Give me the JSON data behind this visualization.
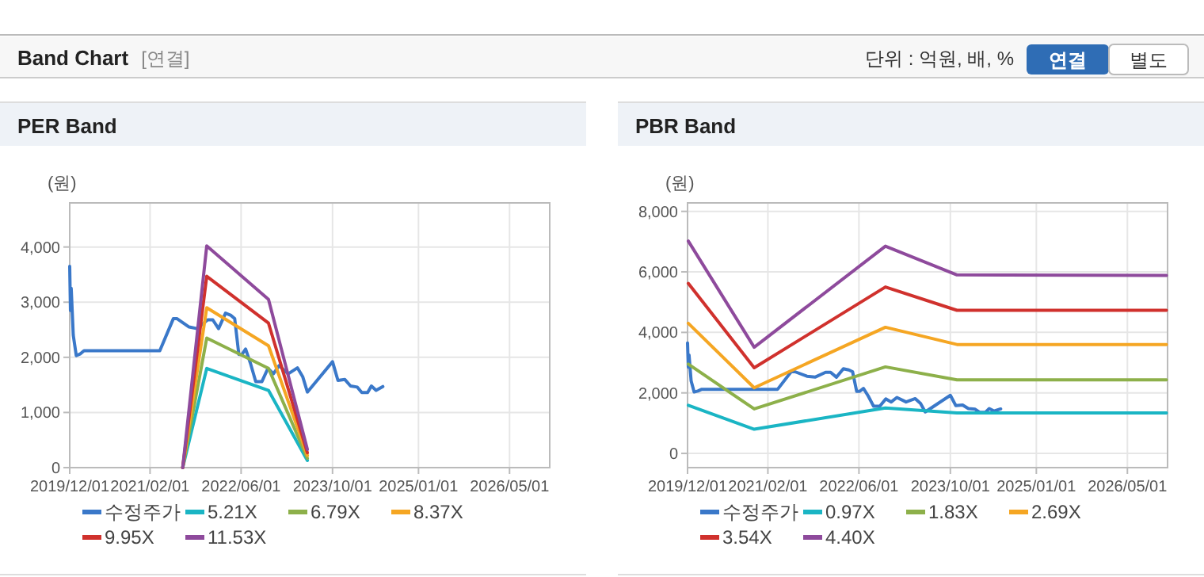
{
  "chart_data": [
    {
      "type": "other",
      "title": "Band Chart",
      "annotations": [
        "[연결]",
        "단위 : 억원, 배, %",
        "연결",
        "별도"
      ]
    },
    {
      "type": "line",
      "title": "PER Band",
      "ylabel": "(원)",
      "grid": true,
      "legend": "bottom",
      "line_style": "solid",
      "xlim": [
        "2019-12-01",
        "2026-12-01"
      ],
      "xticks": [
        {
          "value": "2019-12-01",
          "label": "2019/12/01"
        },
        {
          "value": "2021-02-01",
          "label": "2021/02/01"
        },
        {
          "value": "2022-06-01",
          "label": "2022/06/01"
        },
        {
          "value": "2023-10-01",
          "label": "2023/10/01"
        },
        {
          "value": "2025-01-01",
          "label": "2025/01/01"
        },
        {
          "value": "2026-05-01",
          "label": "2026/05/01"
        }
      ],
      "ylim": [
        0,
        4800
      ],
      "yticks": [
        0,
        {
          "value": 1000,
          "label": "1,000"
        },
        {
          "value": 2000,
          "label": "2,000"
        },
        {
          "value": 3000,
          "label": "3,000"
        },
        {
          "value": 4000,
          "label": "4,000"
        }
      ],
      "series": [
        {
          "name": "수정주가",
          "color": "#3a78c9",
          "x": [
            "2019-12-01",
            "2019-12-05",
            "2019-12-09",
            "2019-12-20",
            "2020-01-05",
            "2020-01-25",
            "2020-02-15",
            "2021-03-25",
            "2021-06-05",
            "2021-06-25",
            "2021-08-28",
            "2021-10-10",
            "2021-12-05",
            "2022-01-01",
            "2022-02-01",
            "2022-03-10",
            "2022-04-08",
            "2022-04-28",
            "2022-05-20",
            "2022-06-05",
            "2022-06-25",
            "2022-07-20",
            "2022-08-18",
            "2022-09-20",
            "2022-10-22",
            "2022-11-20",
            "2022-12-20",
            "2023-02-07",
            "2023-03-28",
            "2023-04-25",
            "2023-05-20",
            "2023-07-15",
            "2023-10-01",
            "2023-10-30",
            "2023-12-05",
            "2024-01-05",
            "2024-02-10",
            "2024-03-05",
            "2024-04-05",
            "2024-04-25",
            "2024-05-20",
            "2024-06-25"
          ],
          "values": [
            3650,
            2850,
            3250,
            2400,
            2030,
            2060,
            2120,
            2120,
            2700,
            2700,
            2550,
            2520,
            2680,
            2680,
            2520,
            2800,
            2760,
            2700,
            2050,
            2050,
            2150,
            1900,
            1560,
            1560,
            1800,
            1700,
            1850,
            1700,
            1810,
            1650,
            1370,
            1600,
            1920,
            1580,
            1600,
            1480,
            1460,
            1360,
            1360,
            1480,
            1400,
            1470
          ]
        },
        {
          "name": "5.21X",
          "color": "#1ab5c4",
          "x": [
            "2021-07-25",
            "2021-11-30",
            "2022-10-25",
            "2023-05-20"
          ],
          "values": [
            0,
            1800,
            1400,
            130
          ]
        },
        {
          "name": "6.79X",
          "color": "#8db04a",
          "x": [
            "2021-07-25",
            "2021-11-30",
            "2022-10-25",
            "2023-05-20"
          ],
          "values": [
            0,
            2350,
            1800,
            170
          ]
        },
        {
          "name": "8.37X",
          "color": "#f5a623",
          "x": [
            "2021-07-25",
            "2021-11-30",
            "2022-10-25",
            "2023-05-20"
          ],
          "values": [
            0,
            2900,
            2210,
            220
          ]
        },
        {
          "name": "9.95X",
          "color": "#d0312d",
          "x": [
            "2021-07-25",
            "2021-11-30",
            "2022-10-25",
            "2023-05-20"
          ],
          "values": [
            0,
            3470,
            2620,
            270
          ]
        },
        {
          "name": "11.53X",
          "color": "#8e4a9c",
          "x": [
            "2021-07-25",
            "2021-11-30",
            "2022-10-25",
            "2023-05-20"
          ],
          "values": [
            0,
            4020,
            3050,
            330
          ]
        }
      ]
    },
    {
      "type": "line",
      "title": "PBR Band",
      "ylabel": "(원)",
      "grid": true,
      "legend": "bottom",
      "line_style": "solid",
      "xlim": [
        "2019-12-01",
        "2026-12-01"
      ],
      "xticks": [
        {
          "value": "2019-12-01",
          "label": "2019/12/01"
        },
        {
          "value": "2021-02-01",
          "label": "2021/02/01"
        },
        {
          "value": "2022-06-01",
          "label": "2022/06/01"
        },
        {
          "value": "2023-10-01",
          "label": "2023/10/01"
        },
        {
          "value": "2025-01-01",
          "label": "2025/01/01"
        },
        {
          "value": "2026-05-01",
          "label": "2026/05/01"
        }
      ],
      "ylim": [
        -470,
        8280
      ],
      "yticks": [
        0,
        {
          "value": 2000,
          "label": "2,000"
        },
        {
          "value": 4000,
          "label": "4,000"
        },
        {
          "value": 6000,
          "label": "6,000"
        },
        {
          "value": 8000,
          "label": "8,000"
        }
      ],
      "series": [
        {
          "name": "수정주가",
          "color": "#3a78c9",
          "x": [
            "2019-12-01",
            "2019-12-05",
            "2019-12-09",
            "2019-12-20",
            "2020-01-05",
            "2020-01-25",
            "2020-02-15",
            "2021-03-25",
            "2021-06-05",
            "2021-06-25",
            "2021-08-28",
            "2021-10-10",
            "2021-12-05",
            "2022-01-01",
            "2022-02-01",
            "2022-03-10",
            "2022-04-08",
            "2022-04-28",
            "2022-05-20",
            "2022-06-05",
            "2022-06-25",
            "2022-07-20",
            "2022-08-18",
            "2022-09-20",
            "2022-10-22",
            "2022-11-20",
            "2022-12-20",
            "2023-02-07",
            "2023-03-28",
            "2023-04-25",
            "2023-05-20",
            "2023-07-15",
            "2023-10-01",
            "2023-10-30",
            "2023-12-05",
            "2024-01-05",
            "2024-02-10",
            "2024-03-05",
            "2024-04-05",
            "2024-04-25",
            "2024-05-20",
            "2024-06-25"
          ],
          "values": [
            3650,
            2850,
            3250,
            2400,
            2030,
            2060,
            2120,
            2120,
            2700,
            2700,
            2550,
            2520,
            2680,
            2680,
            2520,
            2800,
            2760,
            2700,
            2050,
            2050,
            2150,
            1900,
            1560,
            1560,
            1800,
            1700,
            1850,
            1700,
            1810,
            1650,
            1370,
            1600,
            1920,
            1580,
            1600,
            1480,
            1460,
            1360,
            1360,
            1480,
            1400,
            1470
          ]
        },
        {
          "name": "0.97X",
          "color": "#1ab5c4",
          "x": [
            "2019-12-05",
            "2020-11-20",
            "2022-10-20",
            "2023-11-05",
            "2026-11-25"
          ],
          "values": [
            1590,
            800,
            1500,
            1340,
            1340
          ]
        },
        {
          "name": "1.83X",
          "color": "#8db04a",
          "x": [
            "2019-12-05",
            "2020-11-20",
            "2022-10-20",
            "2023-11-05",
            "2026-11-25"
          ],
          "values": [
            2950,
            1470,
            2860,
            2430,
            2430
          ]
        },
        {
          "name": "2.69X",
          "color": "#f5a623",
          "x": [
            "2019-12-05",
            "2020-11-20",
            "2022-10-20",
            "2023-11-05",
            "2026-11-25"
          ],
          "values": [
            4300,
            2170,
            4170,
            3600,
            3600
          ]
        },
        {
          "name": "3.54X",
          "color": "#d0312d",
          "x": [
            "2019-12-05",
            "2020-11-20",
            "2022-10-20",
            "2023-11-05",
            "2026-11-25"
          ],
          "values": [
            5620,
            2830,
            5500,
            4730,
            4730
          ]
        },
        {
          "name": "4.40X",
          "color": "#8e4a9c",
          "x": [
            "2019-12-05",
            "2020-11-20",
            "2022-10-20",
            "2023-11-05",
            "2026-11-25"
          ],
          "values": [
            7020,
            3510,
            6850,
            5900,
            5880
          ]
        }
      ]
    }
  ]
}
